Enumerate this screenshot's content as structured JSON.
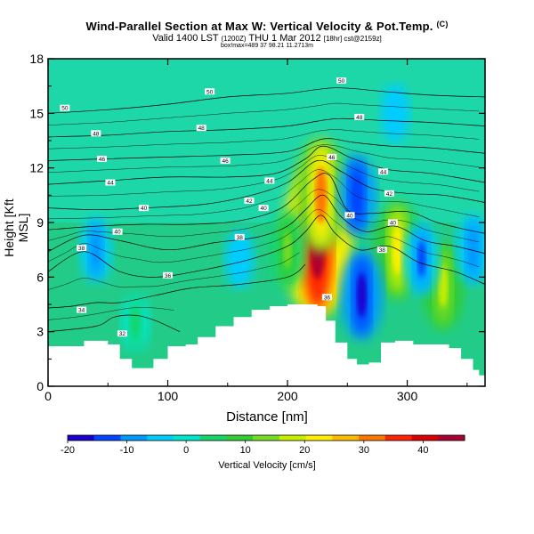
{
  "chart_data": {
    "type": "heatmap",
    "title": "Wind-Parallel Section at Max W: Vertical Velocity & Pot.Temp.",
    "title_mark": "(C)",
    "subtitle": "Valid 1400 LST",
    "subtitle_small1": "(1200Z)",
    "subtitle_rest": "THU 1 Mar 2012",
    "subtitle_small2": "[18hr] cst@2159z]",
    "subtitle_line2": "box!max=489 37 98.21 11.2713m",
    "xlabel": "Distance [nm]",
    "ylabel": "Height [Kft MSL]",
    "xlim": [
      0,
      365
    ],
    "ylim": [
      0,
      18
    ],
    "xticks": [
      0,
      100,
      200,
      300
    ],
    "yticks": [
      0,
      3,
      6,
      9,
      12,
      15,
      18
    ],
    "grid": false,
    "colorbar": {
      "label": "Vertical Velocity [cm/s]",
      "range": [
        -20,
        47
      ],
      "ticks": [
        -20,
        -10,
        0,
        10,
        20,
        30,
        40
      ],
      "colors": [
        "#1a00cc",
        "#0044ff",
        "#0099ff",
        "#00ccff",
        "#00e6cc",
        "#19d46b",
        "#33cc33",
        "#77dd22",
        "#c8ee00",
        "#ffee00",
        "#ffbb00",
        "#ff7700",
        "#ff2200",
        "#dd0000",
        "#aa0033"
      ]
    },
    "terrain": [
      [
        0,
        2.2
      ],
      [
        10,
        2.2
      ],
      [
        25,
        2.2
      ],
      [
        30,
        2.5
      ],
      [
        50,
        2.3
      ],
      [
        60,
        1.5
      ],
      [
        70,
        1.0
      ],
      [
        80,
        1.0
      ],
      [
        88,
        1.5
      ],
      [
        100,
        2.2
      ],
      [
        115,
        2.3
      ],
      [
        125,
        2.7
      ],
      [
        140,
        3.3
      ],
      [
        155,
        3.8
      ],
      [
        170,
        4.2
      ],
      [
        185,
        4.4
      ],
      [
        200,
        4.5
      ],
      [
        215,
        4.5
      ],
      [
        225,
        4.4
      ],
      [
        232,
        3.6
      ],
      [
        240,
        2.4
      ],
      [
        250,
        1.5
      ],
      [
        258,
        1.2
      ],
      [
        268,
        1.3
      ],
      [
        278,
        2.4
      ],
      [
        290,
        2.5
      ],
      [
        305,
        2.3
      ],
      [
        320,
        2.3
      ],
      [
        335,
        2.1
      ],
      [
        345,
        1.5
      ],
      [
        355,
        0.9
      ],
      [
        360,
        0.6
      ],
      [
        365,
        0.6
      ]
    ],
    "velocity_features": [
      {
        "x": 225,
        "y": 8.0,
        "value": 47
      },
      {
        "x": 228,
        "y": 10.5,
        "value": 30
      },
      {
        "x": 292,
        "y": 7.5,
        "value": 23
      },
      {
        "x": 330,
        "y": 5.5,
        "value": 18
      },
      {
        "x": 200,
        "y": 7.5,
        "value": 14
      },
      {
        "x": 73,
        "y": 3.5,
        "value": 5
      },
      {
        "x": 262,
        "y": 5.0,
        "value": -19
      },
      {
        "x": 258,
        "y": 10.5,
        "value": -15
      },
      {
        "x": 312,
        "y": 7.0,
        "value": -12
      },
      {
        "x": 355,
        "y": 7.5,
        "value": -11
      },
      {
        "x": 40,
        "y": 7.5,
        "value": -9
      },
      {
        "x": 160,
        "y": 7.0,
        "value": -6
      },
      {
        "x": 290,
        "y": 15.0,
        "value": -6
      }
    ],
    "isentropes": [
      {
        "label": "32",
        "points": [
          [
            0,
            3.0
          ],
          [
            40,
            3.3
          ],
          [
            55,
            3.8
          ],
          [
            73,
            3.9
          ],
          [
            90,
            3.6
          ],
          [
            110,
            3.0
          ]
        ]
      },
      {
        "label": "34",
        "points": [
          [
            0,
            4.3
          ],
          [
            20,
            4.4
          ],
          [
            40,
            4.6
          ],
          [
            60,
            4.6
          ],
          [
            90,
            5.0
          ],
          [
            120,
            5.4
          ],
          [
            160,
            5.6
          ],
          [
            200,
            6.0
          ],
          [
            215,
            6.7
          ]
        ]
      },
      {
        "label": "36",
        "points": [
          [
            0,
            6.3
          ],
          [
            30,
            7.4
          ],
          [
            60,
            6.3
          ],
          [
            90,
            6.0
          ],
          [
            130,
            6.4
          ],
          [
            170,
            7.0
          ],
          [
            200,
            7.7
          ],
          [
            215,
            8.5
          ],
          [
            228,
            9.4
          ],
          [
            240,
            8.4
          ],
          [
            260,
            7.5
          ],
          [
            285,
            7.7
          ],
          [
            310,
            6.8
          ],
          [
            340,
            6.3
          ],
          [
            365,
            5.6
          ]
        ]
      },
      {
        "label": "38",
        "points": [
          [
            0,
            7.4
          ],
          [
            30,
            8.3
          ],
          [
            60,
            8.0
          ],
          [
            100,
            7.5
          ],
          [
            140,
            7.9
          ],
          [
            175,
            8.2
          ],
          [
            200,
            8.8
          ],
          [
            215,
            9.7
          ],
          [
            230,
            10.5
          ],
          [
            245,
            9.3
          ],
          [
            265,
            8.5
          ],
          [
            290,
            8.8
          ],
          [
            315,
            8.0
          ],
          [
            340,
            7.7
          ],
          [
            365,
            7.3
          ]
        ]
      },
      {
        "label": "40",
        "points": [
          [
            0,
            8.6
          ],
          [
            40,
            8.8
          ],
          [
            80,
            8.9
          ],
          [
            120,
            8.9
          ],
          [
            160,
            9.1
          ],
          [
            195,
            9.8
          ],
          [
            220,
            11.3
          ],
          [
            235,
            11.6
          ],
          [
            250,
            9.7
          ],
          [
            270,
            9.5
          ],
          [
            300,
            9.6
          ],
          [
            325,
            9.0
          ],
          [
            350,
            8.6
          ],
          [
            365,
            8.4
          ]
        ]
      },
      {
        "label": "42",
        "points": [
          [
            0,
            9.8
          ],
          [
            40,
            9.7
          ],
          [
            80,
            9.8
          ],
          [
            130,
            10.0
          ],
          [
            170,
            10.5
          ],
          [
            200,
            11.2
          ],
          [
            225,
            12.4
          ],
          [
            245,
            11.8
          ],
          [
            270,
            10.9
          ],
          [
            300,
            10.6
          ],
          [
            330,
            10.5
          ],
          [
            365,
            10.1
          ]
        ]
      },
      {
        "label": "44",
        "points": [
          [
            0,
            11.1
          ],
          [
            50,
            11.3
          ],
          [
            100,
            11.5
          ],
          [
            150,
            11.5
          ],
          [
            190,
            11.7
          ],
          [
            215,
            12.5
          ],
          [
            230,
            13.2
          ],
          [
            255,
            12.5
          ],
          [
            285,
            11.9
          ],
          [
            320,
            11.7
          ],
          [
            365,
            11.2
          ]
        ]
      },
      {
        "label": "46",
        "points": [
          [
            0,
            12.4
          ],
          [
            50,
            12.5
          ],
          [
            100,
            12.6
          ],
          [
            150,
            12.7
          ],
          [
            200,
            12.9
          ],
          [
            230,
            13.6
          ],
          [
            255,
            13.4
          ],
          [
            285,
            13.2
          ],
          [
            320,
            13.1
          ],
          [
            365,
            12.8
          ]
        ]
      },
      {
        "label": "48",
        "points": [
          [
            0,
            13.7
          ],
          [
            50,
            13.8
          ],
          [
            100,
            14.0
          ],
          [
            150,
            14.1
          ],
          [
            200,
            14.3
          ],
          [
            240,
            14.7
          ],
          [
            280,
            14.6
          ],
          [
            320,
            14.5
          ],
          [
            365,
            14.3
          ]
        ]
      },
      {
        "label": "50",
        "points": [
          [
            0,
            15.0
          ],
          [
            50,
            15.2
          ],
          [
            100,
            15.5
          ],
          [
            150,
            15.9
          ],
          [
            200,
            16.1
          ],
          [
            240,
            16.4
          ],
          [
            280,
            16.2
          ],
          [
            320,
            16.0
          ],
          [
            365,
            15.9
          ]
        ]
      }
    ],
    "isentrope_label_positions": [
      {
        "label": "50",
        "x": 14,
        "y": 15.3
      },
      {
        "label": "50",
        "x": 135,
        "y": 16.2
      },
      {
        "label": "50",
        "x": 245,
        "y": 16.8
      },
      {
        "label": "48",
        "x": 40,
        "y": 13.9
      },
      {
        "label": "48",
        "x": 128,
        "y": 14.2
      },
      {
        "label": "48",
        "x": 260,
        "y": 14.8
      },
      {
        "label": "46",
        "x": 45,
        "y": 12.5
      },
      {
        "label": "46",
        "x": 148,
        "y": 12.4
      },
      {
        "label": "46",
        "x": 237,
        "y": 12.6
      },
      {
        "label": "44",
        "x": 52,
        "y": 11.2
      },
      {
        "label": "44",
        "x": 185,
        "y": 11.3
      },
      {
        "label": "44",
        "x": 280,
        "y": 11.8
      },
      {
        "label": "42",
        "x": 168,
        "y": 10.2
      },
      {
        "label": "42",
        "x": 285,
        "y": 10.6
      },
      {
        "label": "40",
        "x": 80,
        "y": 9.8
      },
      {
        "label": "40",
        "x": 180,
        "y": 9.8
      },
      {
        "label": "40",
        "x": 252,
        "y": 9.4
      },
      {
        "label": "40",
        "x": 58,
        "y": 8.5
      },
      {
        "label": "40",
        "x": 288,
        "y": 9.0
      },
      {
        "label": "38",
        "x": 28,
        "y": 7.6
      },
      {
        "label": "38",
        "x": 160,
        "y": 8.2
      },
      {
        "label": "38",
        "x": 279,
        "y": 7.5
      },
      {
        "label": "36",
        "x": 100,
        "y": 6.1
      },
      {
        "label": "36",
        "x": 233,
        "y": 4.9
      },
      {
        "label": "34",
        "x": 28,
        "y": 4.2
      },
      {
        "label": "32",
        "x": 62,
        "y": 2.9
      }
    ]
  }
}
